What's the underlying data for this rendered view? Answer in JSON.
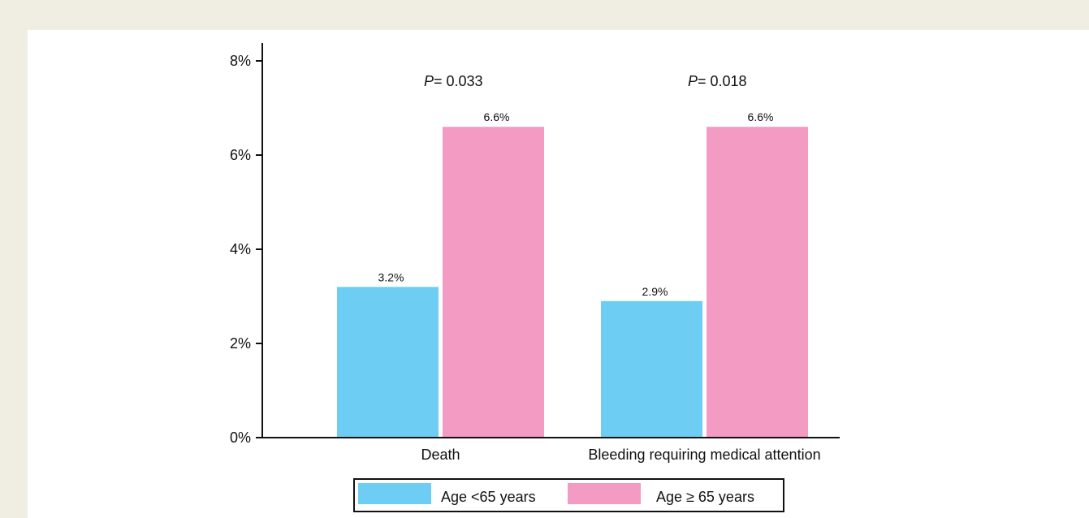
{
  "chart_data": {
    "type": "bar",
    "categories": [
      "Death",
      "Bleeding requiring medical attention"
    ],
    "series": [
      {
        "name": "Age <65 years",
        "values": [
          3.2,
          2.9
        ],
        "labels": [
          "3.2%",
          "2.9%"
        ],
        "color": "#6dcdf2"
      },
      {
        "name": "Age ≥ 65 years",
        "values": [
          6.6,
          6.6
        ],
        "labels": [
          "6.6%",
          "6.6%"
        ],
        "color": "#f39bc3"
      }
    ],
    "annotations": [
      "= 0.033",
      "= 0.018"
    ],
    "annotation_prefix": "P",
    "y_ticks": [
      "0%",
      "2%",
      "4%",
      "6%",
      "8%"
    ],
    "ylim": [
      0,
      8
    ],
    "grid": false,
    "legend_position": "bottom"
  },
  "colors": {
    "background": "#f0ede3",
    "panel": "#ffffff",
    "axis": "#111111"
  }
}
